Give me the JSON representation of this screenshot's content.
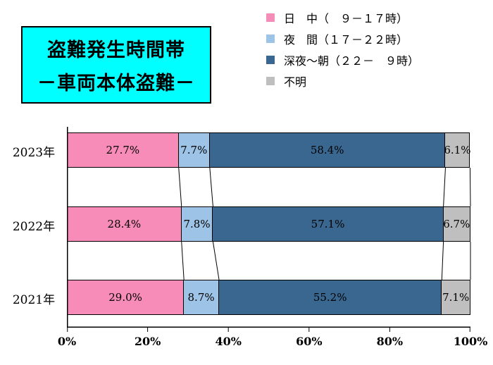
{
  "title": {
    "line1": "盗難発生時間帯",
    "line2": "－車両本体盗難－"
  },
  "legend": {
    "items": [
      {
        "label": "日　中（　９－１７時）",
        "color": "#f78cb8"
      },
      {
        "label": "夜　間（１７－２２時）",
        "color": "#9dc3e6"
      },
      {
        "label": "深夜～朝（２２－　９時）",
        "color": "#3a6790"
      },
      {
        "label": "不明",
        "color": "#bfbfbf"
      }
    ]
  },
  "chart_data": {
    "type": "bar",
    "orientation": "horizontal",
    "stacked": true,
    "grid": false,
    "legend_position": "top-right",
    "xlim": [
      0,
      100
    ],
    "x_ticks": [
      "0%",
      "20%",
      "40%",
      "60%",
      "80%",
      "100%"
    ],
    "categories": [
      "2023年",
      "2022年",
      "2021年"
    ],
    "series": [
      {
        "name": "日中（9-17時）",
        "color": "#f78cb8",
        "values": [
          27.7,
          28.4,
          29.0
        ]
      },
      {
        "name": "夜間（17-22時）",
        "color": "#9dc3e6",
        "values": [
          7.7,
          7.8,
          8.7
        ]
      },
      {
        "name": "深夜～朝（22-9時）",
        "color": "#3a6790",
        "values": [
          58.4,
          57.1,
          55.2
        ]
      },
      {
        "name": "不明",
        "color": "#bfbfbf",
        "values": [
          6.1,
          6.7,
          7.1
        ]
      }
    ],
    "value_label_format": "0.0%"
  }
}
